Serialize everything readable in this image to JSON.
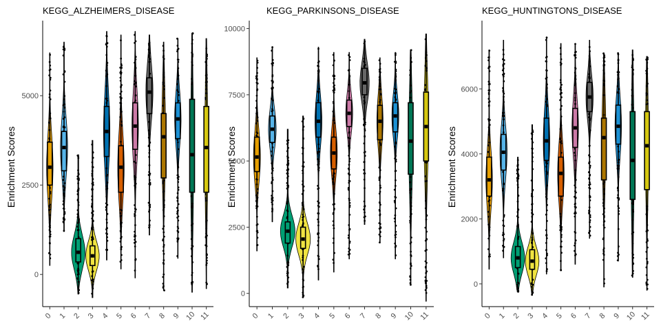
{
  "chart_data": [
    {
      "type": "violin",
      "title": "KEGG_ALZHEIMERS_DISEASE",
      "ylabel": "Enrichment Scores",
      "xlabel": "",
      "categories": [
        "0",
        "1",
        "2",
        "3",
        "4",
        "5",
        "6",
        "7",
        "8",
        "9",
        "10",
        "11"
      ],
      "yticks": [
        0,
        2500,
        5000
      ],
      "ylim": [
        -900,
        7100
      ],
      "grid": false,
      "legend": "none",
      "violins": [
        {
          "min": 250,
          "q1": 2500,
          "median": 3000,
          "q3": 3700,
          "max": 6200,
          "width": 0.45
        },
        {
          "min": 1200,
          "q1": 2900,
          "median": 3550,
          "q3": 4000,
          "max": 6500,
          "width": 0.5
        },
        {
          "min": -550,
          "q1": 350,
          "median": 620,
          "q3": 1000,
          "max": 3350,
          "width": 0.95
        },
        {
          "min": -650,
          "q1": 250,
          "median": 520,
          "q3": 800,
          "max": 3750,
          "width": 0.95
        },
        {
          "min": 400,
          "q1": 3300,
          "median": 4000,
          "q3": 4700,
          "max": 6800,
          "width": 0.45
        },
        {
          "min": 150,
          "q1": 2300,
          "median": 3000,
          "q3": 3600,
          "max": 6700,
          "width": 0.45
        },
        {
          "min": -100,
          "q1": 3500,
          "median": 4150,
          "q3": 4800,
          "max": 6800,
          "width": 0.45
        },
        {
          "min": 1100,
          "q1": 4500,
          "median": 5100,
          "q3": 5500,
          "max": 6700,
          "width": 0.5
        },
        {
          "min": -450,
          "q1": 2700,
          "median": 3850,
          "q3": 4500,
          "max": 6500,
          "width": 0.28
        },
        {
          "min": 450,
          "q1": 3800,
          "median": 4350,
          "q3": 4800,
          "max": 6600,
          "width": 0.45
        },
        {
          "min": -500,
          "q1": 2300,
          "median": 3350,
          "q3": 4900,
          "max": 6750,
          "width": 0.22
        },
        {
          "min": -400,
          "q1": 2300,
          "median": 3550,
          "q3": 4700,
          "max": 6600,
          "width": 0.22
        }
      ]
    },
    {
      "type": "violin",
      "title": "KEGG_PARKINSONS_DISEASE",
      "ylabel": "Enrichment Scores",
      "xlabel": "",
      "categories": [
        "0",
        "1",
        "2",
        "3",
        "4",
        "5",
        "6",
        "7",
        "8",
        "9",
        "10",
        "11"
      ],
      "yticks": [
        0,
        2500,
        5000,
        7500,
        10000
      ],
      "ylim": [
        -500,
        10300
      ],
      "grid": false,
      "legend": "none",
      "violins": [
        {
          "min": 1600,
          "q1": 4600,
          "median": 5150,
          "q3": 5900,
          "max": 8900,
          "width": 0.45
        },
        {
          "min": 2700,
          "q1": 5700,
          "median": 6200,
          "q3": 6700,
          "max": 9300,
          "width": 0.5
        },
        {
          "min": 200,
          "q1": 1900,
          "median": 2350,
          "q3": 2700,
          "max": 6200,
          "width": 0.95
        },
        {
          "min": -150,
          "q1": 1700,
          "median": 2050,
          "q3": 2500,
          "max": 6700,
          "width": 0.95
        },
        {
          "min": 500,
          "q1": 5900,
          "median": 6500,
          "q3": 7200,
          "max": 9300,
          "width": 0.45
        },
        {
          "min": 800,
          "q1": 4700,
          "median": 5300,
          "q3": 5900,
          "max": 9100,
          "width": 0.45
        },
        {
          "min": 1300,
          "q1": 6300,
          "median": 6800,
          "q3": 7300,
          "max": 9100,
          "width": 0.45
        },
        {
          "min": 2600,
          "q1": 7500,
          "median": 7950,
          "q3": 8500,
          "max": 9600,
          "width": 0.6
        },
        {
          "min": 1900,
          "q1": 5800,
          "median": 6500,
          "q3": 7100,
          "max": 8900,
          "width": 0.4
        },
        {
          "min": 1300,
          "q1": 6100,
          "median": 6700,
          "q3": 7200,
          "max": 9100,
          "width": 0.45
        },
        {
          "min": 300,
          "q1": 4500,
          "median": 5750,
          "q3": 7200,
          "max": 9200,
          "width": 0.25
        },
        {
          "min": -300,
          "q1": 5000,
          "median": 6300,
          "q3": 7600,
          "max": 9800,
          "width": 0.3
        }
      ]
    },
    {
      "type": "violin",
      "title": "KEGG_HUNTINGTONS_DISEASE",
      "ylabel": "Enrichment Scores",
      "xlabel": "",
      "categories": [
        "0",
        "1",
        "2",
        "3",
        "4",
        "5",
        "6",
        "7",
        "8",
        "9",
        "10",
        "11"
      ],
      "yticks": [
        0,
        2000,
        4000,
        6000
      ],
      "ylim": [
        -700,
        8100
      ],
      "grid": false,
      "legend": "none",
      "violins": [
        {
          "min": 450,
          "q1": 2700,
          "median": 3200,
          "q3": 3900,
          "max": 7200,
          "width": 0.45
        },
        {
          "min": 800,
          "q1": 3500,
          "median": 4050,
          "q3": 4600,
          "max": 7500,
          "width": 0.5
        },
        {
          "min": -250,
          "q1": 500,
          "median": 800,
          "q3": 1150,
          "max": 3900,
          "width": 0.95
        },
        {
          "min": -350,
          "q1": 450,
          "median": 700,
          "q3": 1050,
          "max": 4900,
          "width": 0.95
        },
        {
          "min": 300,
          "q1": 3800,
          "median": 4400,
          "q3": 5100,
          "max": 7600,
          "width": 0.45
        },
        {
          "min": 400,
          "q1": 2700,
          "median": 3400,
          "q3": 3900,
          "max": 7400,
          "width": 0.45
        },
        {
          "min": 600,
          "q1": 4200,
          "median": 4800,
          "q3": 5400,
          "max": 7400,
          "width": 0.45
        },
        {
          "min": 1400,
          "q1": 5300,
          "median": 5750,
          "q3": 6200,
          "max": 7500,
          "width": 0.5
        },
        {
          "min": -100,
          "q1": 3200,
          "median": 4500,
          "q3": 5100,
          "max": 7100,
          "width": 0.28
        },
        {
          "min": 700,
          "q1": 4300,
          "median": 4850,
          "q3": 5500,
          "max": 7100,
          "width": 0.45
        },
        {
          "min": 200,
          "q1": 2600,
          "median": 3800,
          "q3": 5300,
          "max": 7200,
          "width": 0.22
        },
        {
          "min": -200,
          "q1": 2900,
          "median": 4250,
          "q3": 5300,
          "max": 7000,
          "width": 0.22
        }
      ]
    }
  ],
  "colors": [
    "#E69F00",
    "#56B4E9",
    "#009E73",
    "#F0E442",
    "#0072B2",
    "#D55E00",
    "#CC79A7",
    "#666666",
    "#AD7700",
    "#1C91D4",
    "#007756",
    "#D5C711"
  ]
}
